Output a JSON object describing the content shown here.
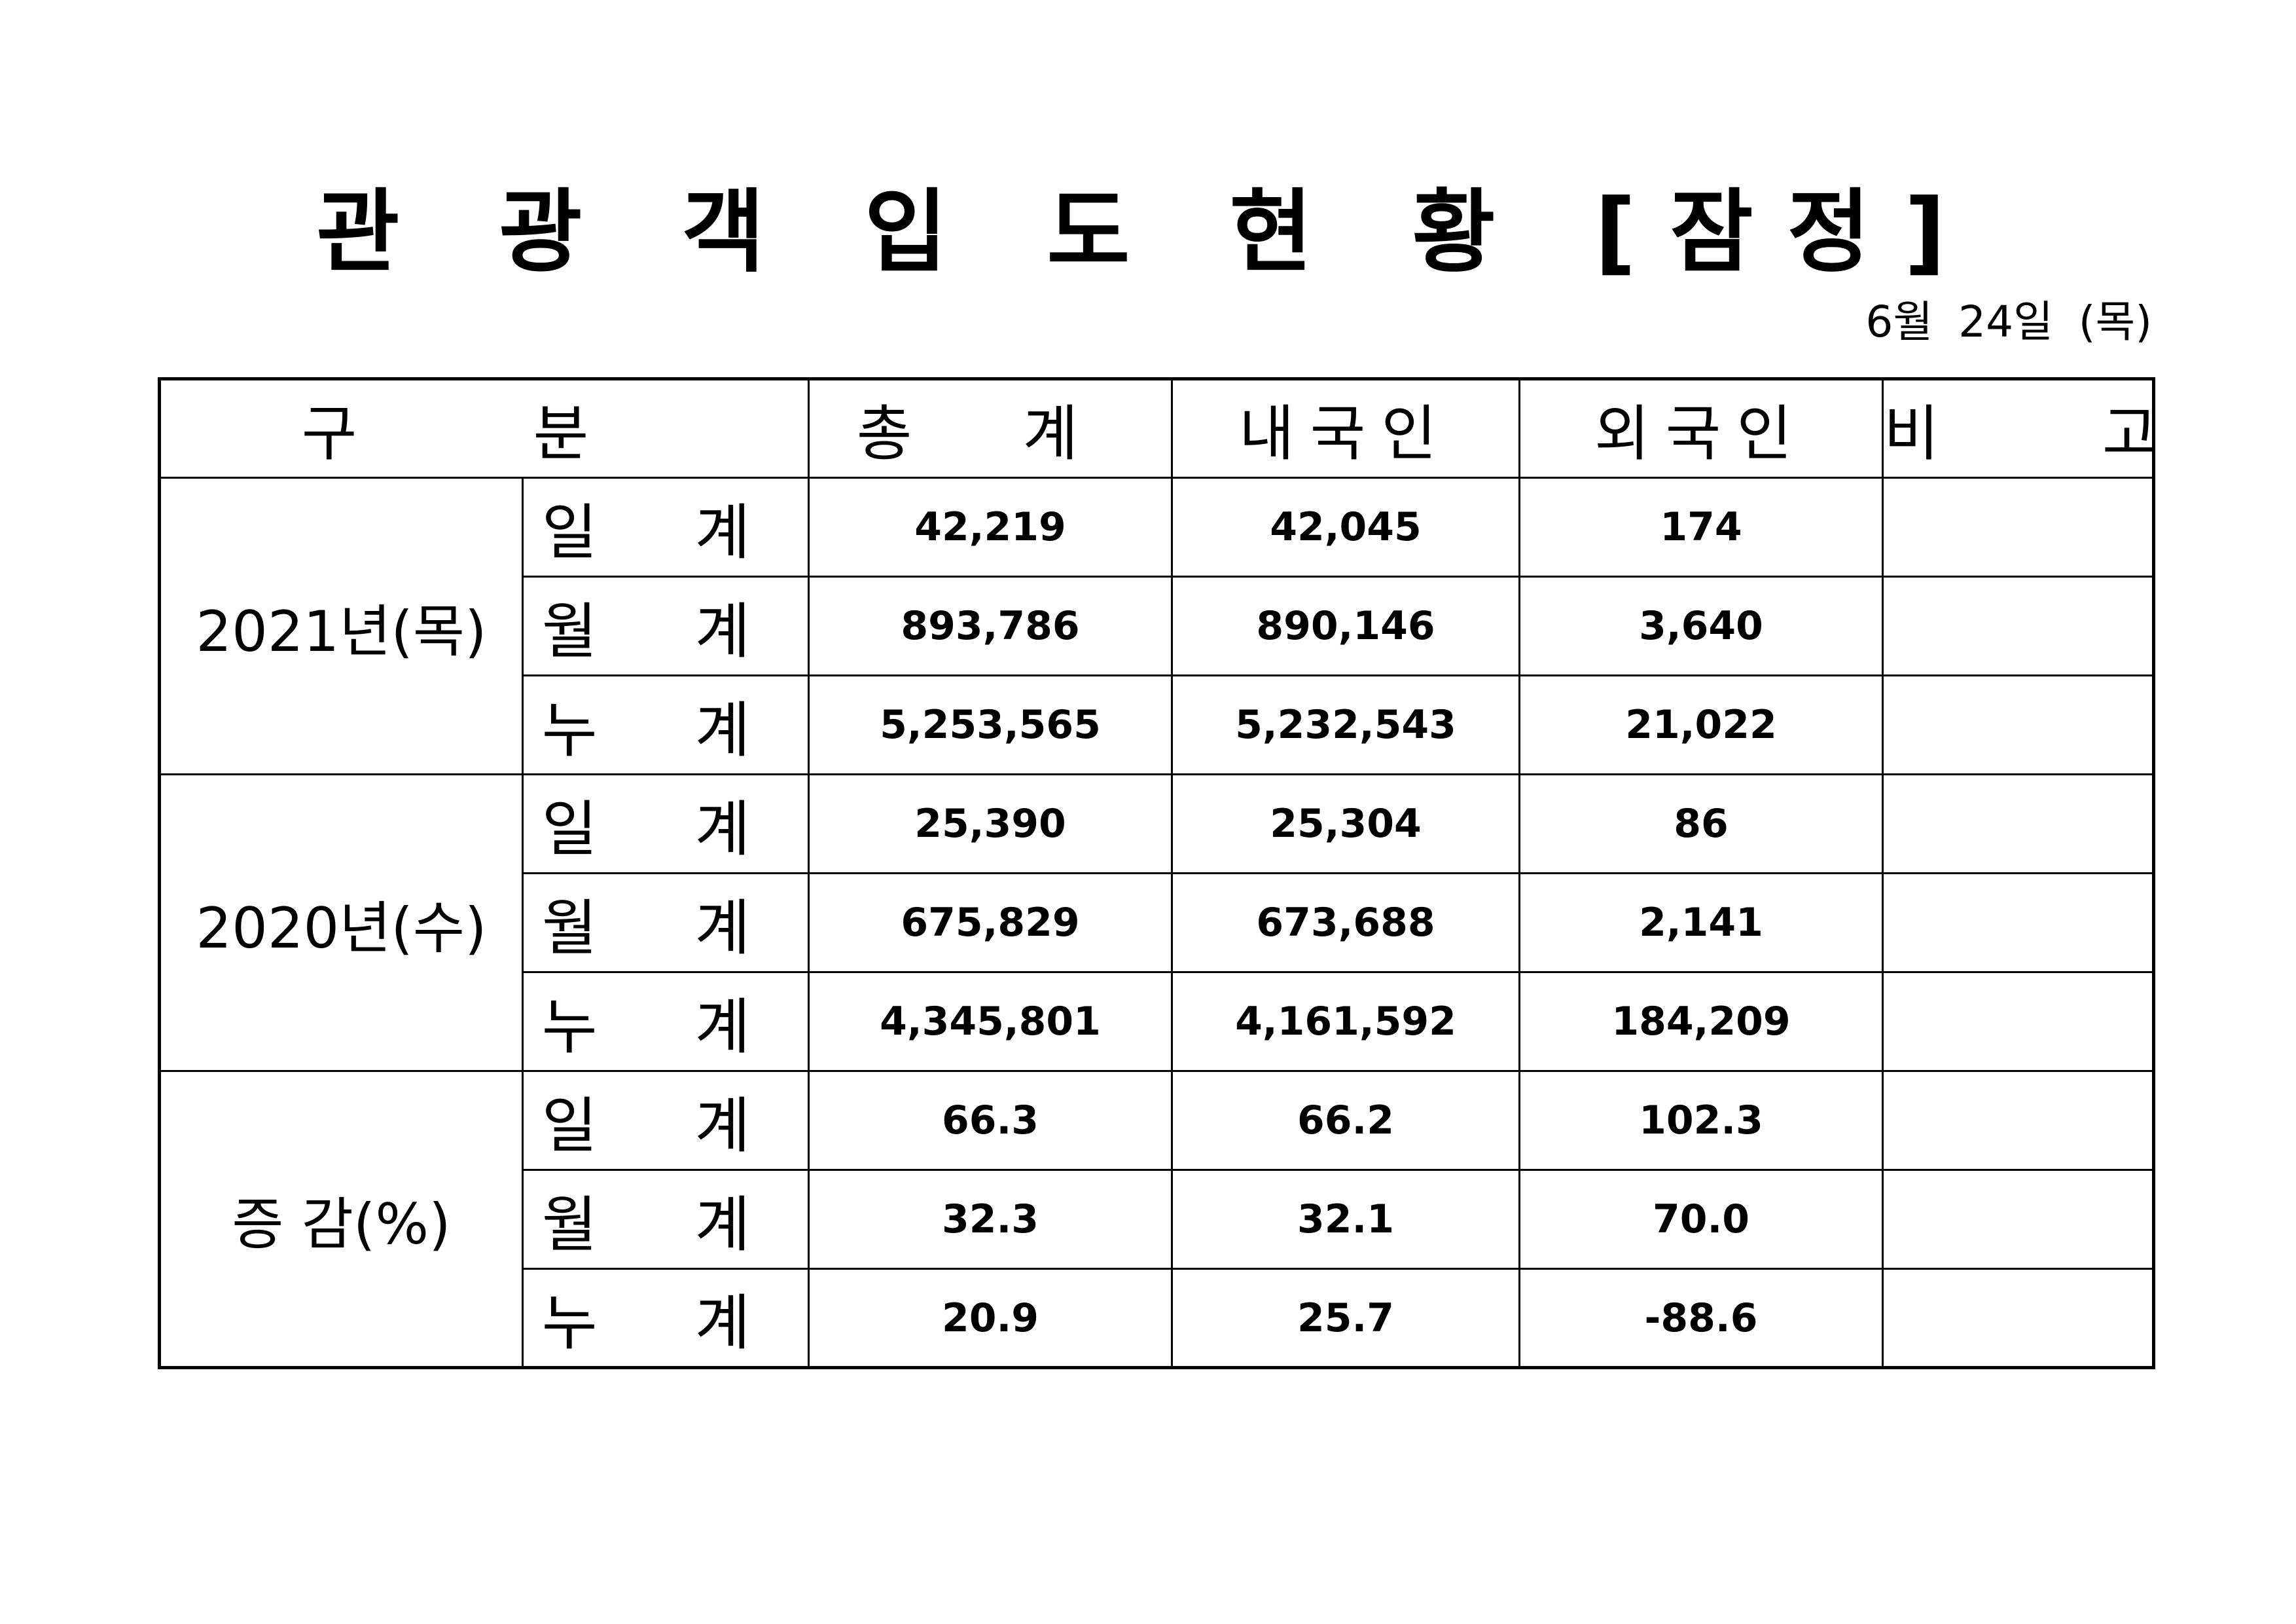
{
  "title": "관 광 객 입 도 현 황 [잠정]",
  "date": "6월 24일 (목)",
  "headers": {
    "category": "구 분",
    "total": "총 계",
    "domestic": "내국인",
    "foreign": "외국인",
    "remarks": "비 고"
  },
  "groups": [
    {
      "label": "2021년(목)",
      "rows": [
        {
          "type": "일 계",
          "total": "42,219",
          "domestic": "42,045",
          "foreign": "174",
          "remarks": ""
        },
        {
          "type": "월 계",
          "total": "893,786",
          "domestic": "890,146",
          "foreign": "3,640",
          "remarks": ""
        },
        {
          "type": "누 계",
          "total": "5,253,565",
          "domestic": "5,232,543",
          "foreign": "21,022",
          "remarks": ""
        }
      ]
    },
    {
      "label": "2020년(수)",
      "rows": [
        {
          "type": "일 계",
          "total": "25,390",
          "domestic": "25,304",
          "foreign": "86",
          "remarks": ""
        },
        {
          "type": "월 계",
          "total": "675,829",
          "domestic": "673,688",
          "foreign": "2,141",
          "remarks": ""
        },
        {
          "type": "누 계",
          "total": "4,345,801",
          "domestic": "4,161,592",
          "foreign": "184,209",
          "remarks": ""
        }
      ]
    },
    {
      "label": "증 감(%)",
      "rows": [
        {
          "type": "일 계",
          "total": "66.3",
          "domestic": "66.2",
          "foreign": "102.3",
          "remarks": ""
        },
        {
          "type": "월 계",
          "total": "32.3",
          "domestic": "32.1",
          "foreign": "70.0",
          "remarks": ""
        },
        {
          "type": "누 계",
          "total": "20.9",
          "domestic": "25.7",
          "foreign": "-88.6",
          "remarks": ""
        }
      ]
    }
  ]
}
